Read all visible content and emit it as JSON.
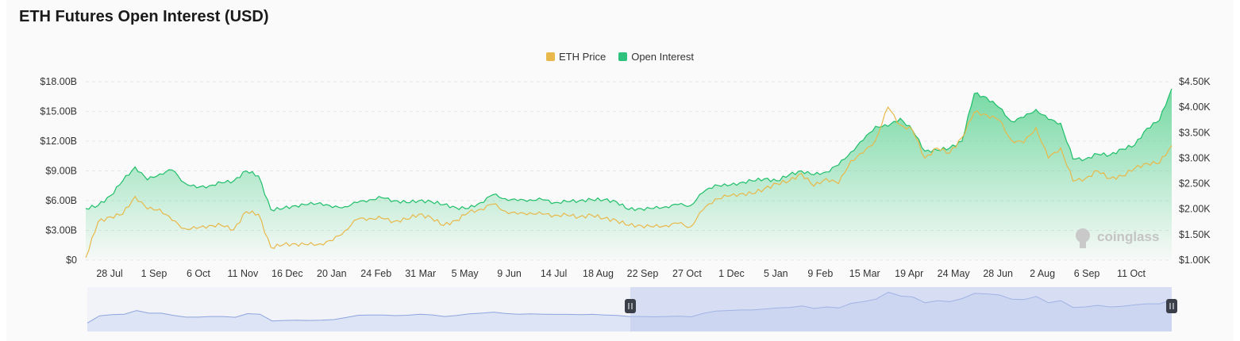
{
  "header": {
    "title": "ETH Futures Open Interest (USD)"
  },
  "legend": [
    {
      "label": "ETH Price",
      "color": "#e8b84a"
    },
    {
      "label": "Open Interest",
      "color": "#2ec27e"
    }
  ],
  "watermark": {
    "text": "coinglass"
  },
  "colors": {
    "price": "#e8b84a",
    "oi_line": "#1fbf6a",
    "oi_fill_top": "#5fd394",
    "slider": "#8ea4dd"
  },
  "chart_data": {
    "type": "area",
    "title": "ETH Futures Open Interest (USD)",
    "x_tick_labels": [
      "28 Jul",
      "1 Sep",
      "6 Oct",
      "11 Nov",
      "16 Dec",
      "20 Jan",
      "24 Feb",
      "31 Mar",
      "5 May",
      "9 Jun",
      "14 Jul",
      "18 Aug",
      "22 Sep",
      "27 Oct",
      "1 Dec",
      "5 Jan",
      "9 Feb",
      "15 Mar",
      "19 Apr",
      "24 May",
      "28 Jun",
      "2 Aug",
      "6 Sep",
      "11 Oct"
    ],
    "y_left": {
      "ticks": [
        "$0",
        "$3.00B",
        "$6.00B",
        "$9.00B",
        "$12.00B",
        "$15.00B",
        "$18.00B"
      ],
      "min": 0,
      "max": 18,
      "unit": "B USD"
    },
    "y_right": {
      "ticks": [
        "$1.00K",
        "$1.50K",
        "$2.00K",
        "$2.50K",
        "$3.00K",
        "$3.50K",
        "$4.00K",
        "$4.50K"
      ],
      "min": 1.0,
      "max": 4.5,
      "unit": "K USD"
    },
    "grid": true,
    "legend_position": "top-center",
    "series": [
      {
        "name": "Open Interest",
        "axis": "left",
        "values": [
          5.2,
          5.5,
          6.5,
          8.0,
          9.4,
          8.1,
          8.7,
          9.1,
          7.8,
          7.3,
          7.5,
          7.8,
          8.0,
          9.0,
          8.5,
          5.1,
          5.2,
          5.5,
          5.6,
          5.8,
          5.3,
          5.4,
          5.8,
          6.1,
          6.3,
          6.0,
          5.8,
          6.0,
          5.9,
          5.6,
          5.3,
          5.2,
          5.8,
          6.6,
          6.2,
          6.0,
          6.1,
          6.1,
          5.8,
          5.9,
          6.0,
          6.1,
          6.1,
          5.9,
          5.1,
          5.2,
          5.2,
          5.4,
          5.6,
          5.5,
          6.8,
          7.6,
          7.5,
          7.8,
          8.0,
          8.2,
          8.0,
          8.6,
          9.0,
          8.6,
          8.9,
          9.6,
          10.9,
          12.1,
          13.5,
          13.5,
          14.3,
          13.1,
          11.0,
          11.1,
          11.3,
          12.0,
          16.8,
          16.4,
          15.4,
          14.0,
          14.4,
          15.2,
          14.2,
          13.8,
          10.2,
          10.2,
          10.7,
          10.6,
          11.2,
          11.6,
          13.3,
          14.1,
          17.3
        ]
      },
      {
        "name": "ETH Price",
        "axis": "right",
        "values": [
          1.05,
          1.75,
          1.85,
          1.9,
          2.25,
          2.0,
          2.0,
          1.78,
          1.62,
          1.62,
          1.68,
          1.68,
          1.6,
          1.95,
          1.9,
          1.25,
          1.3,
          1.32,
          1.3,
          1.32,
          1.38,
          1.58,
          1.8,
          1.82,
          1.82,
          1.76,
          1.8,
          1.9,
          1.83,
          1.68,
          1.78,
          1.93,
          2.0,
          2.1,
          1.96,
          1.9,
          1.93,
          1.9,
          1.88,
          1.88,
          1.85,
          1.88,
          1.82,
          1.78,
          1.68,
          1.68,
          1.65,
          1.68,
          1.72,
          1.65,
          1.98,
          2.2,
          2.25,
          2.3,
          2.3,
          2.4,
          2.5,
          2.55,
          2.7,
          2.45,
          2.6,
          2.5,
          2.95,
          3.1,
          3.35,
          4.0,
          3.65,
          3.55,
          3.0,
          3.2,
          3.1,
          3.4,
          3.9,
          3.85,
          3.75,
          3.35,
          3.3,
          3.6,
          3.0,
          3.2,
          2.55,
          2.6,
          2.75,
          2.6,
          2.65,
          2.8,
          2.9,
          2.9,
          3.25
        ]
      }
    ]
  }
}
